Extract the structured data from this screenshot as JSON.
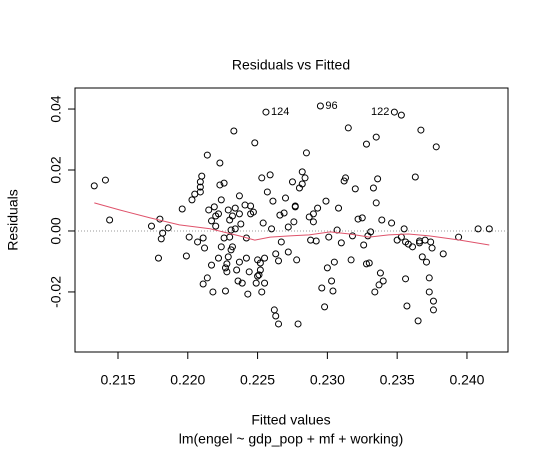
{
  "chart_data": {
    "type": "scatter",
    "title": "Residuals vs Fitted",
    "x_label": "Fitted values",
    "subtitle": "lm(engel ~ gdp_pop + mf + working)",
    "y_label": "Residuals",
    "xlim": [
      0.21192,
      0.24294
    ],
    "ylim": [
      -0.0397,
      0.0469
    ],
    "xticks": [
      0.215,
      {
        "value": 0.22,
        "label": "0.220"
      },
      0.225,
      {
        "value": 0.23,
        "label": "0.230"
      },
      0.235,
      {
        "value": 0.24,
        "label": "0.240"
      }
    ],
    "yticks": [
      -0.02,
      {
        "value": 0,
        "label": "0.00"
      },
      0.02,
      0.04
    ],
    "reference_line": 0,
    "point_color": "#000000",
    "points": {
      "x": [
        0.2133,
        0.2141,
        0.2144,
        0.2174,
        0.2179,
        0.218,
        0.2181,
        0.2182,
        0.2186,
        0.2196,
        0.2199,
        0.2201,
        0.2203,
        0.2205,
        0.2207,
        0.2209,
        0.2209,
        0.2209,
        0.221,
        0.2211,
        0.2211,
        0.2212,
        0.2214,
        0.2214,
        0.2215,
        0.2217,
        0.2217,
        0.2218,
        0.2219,
        0.222,
        0.222,
        0.2222,
        0.2222,
        0.2223,
        0.2223,
        0.2224,
        0.2224,
        0.2226,
        0.2226,
        0.2227,
        0.2227,
        0.2228,
        0.2228,
        0.2229,
        0.2229,
        0.223,
        0.223,
        0.2231,
        0.2231,
        0.2232,
        0.2232,
        0.2233,
        0.2234,
        0.2234,
        0.2235,
        0.2236,
        0.2237,
        0.2237,
        0.2237,
        0.2238,
        0.2239,
        0.2241,
        0.2242,
        0.2242,
        0.2243,
        0.2244,
        0.2245,
        0.2245,
        0.2247,
        0.2248,
        0.2249,
        0.225,
        0.225,
        0.2251,
        0.2252,
        0.2252,
        0.2253,
        0.2253,
        0.2254,
        0.2255,
        0.2255,
        0.2256,
        0.2257,
        0.2259,
        0.226,
        0.2261,
        0.2262,
        0.2263,
        0.2263,
        0.2265,
        0.2265,
        0.2266,
        0.2267,
        0.2269,
        0.227,
        0.2272,
        0.2272,
        0.2275,
        0.2276,
        0.2277,
        0.2277,
        0.2278,
        0.2279,
        0.228,
        0.2282,
        0.2282,
        0.2284,
        0.2285,
        0.2287,
        0.2288,
        0.229,
        0.229,
        0.2292,
        0.2293,
        0.2295,
        0.2296,
        0.2298,
        0.2299,
        0.23,
        0.2301,
        0.2303,
        0.2304,
        0.2305,
        0.2307,
        0.2308,
        0.231,
        0.2312,
        0.2313,
        0.2315,
        0.2317,
        0.2318,
        0.232,
        0.2322,
        0.2325,
        0.2326,
        0.2328,
        0.2328,
        0.2329,
        0.233,
        0.2331,
        0.2333,
        0.2334,
        0.2335,
        0.2335,
        0.2336,
        0.2337,
        0.2338,
        0.2339,
        0.234,
        0.2346,
        0.2348,
        0.235,
        0.2353,
        0.2353,
        0.2355,
        0.2356,
        0.2356,
        0.2357,
        0.2358,
        0.2361,
        0.2363,
        0.2365,
        0.2366,
        0.2366,
        0.2367,
        0.2368,
        0.237,
        0.2371,
        0.2373,
        0.2373,
        0.2374,
        0.2375,
        0.2376,
        0.2376,
        0.2378,
        0.2383,
        0.2394,
        0.2408,
        0.2416
      ],
      "y": [
        0.0148,
        0.0167,
        0.0036,
        0.0016,
        -0.0089,
        0.0039,
        -0.0026,
        -0.0007,
        0.001,
        0.0072,
        -0.0082,
        -0.002,
        0.0102,
        0.0121,
        -0.0036,
        0.0161,
        0.0144,
        0.0128,
        0.018,
        -0.0023,
        -0.0174,
        -0.0056,
        -0.0154,
        0.0249,
        0.0069,
        0.0033,
        -0.0112,
        -0.02,
        0.0079,
        0.0049,
        0.0016,
        0.0056,
        -0.0089,
        0.0223,
        0.0151,
        0.0102,
        -0.0052,
        -0.0023,
        0.0157,
        -0.0121,
        -0.0197,
        -0.0134,
        -0.0108,
        -0.0085,
        0.0069,
        0.0036,
        -0.002,
        0.0003,
        -0.0062,
        0.0049,
        -0.0052,
        0.0328,
        0.0075,
        0.0007,
        -0.0128,
        -0.0164,
        0.0115,
        0.0056,
        -0.0102,
        0.0023,
        -0.0171,
        0.0085,
        -0.0089,
        -0.0023,
        -0.0207,
        -0.0134,
        0.0056,
        0.0082,
        0.0062,
        0.0289,
        -0.0171,
        -0.0095,
        -0.0148,
        -0.0144,
        -0.0128,
        -0.0105,
        -0.02,
        0.0174,
        0.0026,
        -0.0089,
        -0.0171,
        0.039,
        0.0128,
        0.0184,
        0.0007,
        0.0098,
        -0.0259,
        -0.0279,
        -0.0075,
        -0.0098,
        -0.0305,
        0.0052,
        -0.0036,
        0.0059,
        0.0108,
        -0.0069,
        0.0013,
        0.0161,
        0.003,
        0.0079,
        0.0082,
        -0.0095,
        -0.0305,
        0.0141,
        0.0154,
        0.0194,
        0.0174,
        0.0256,
        0.0046,
        -0.003,
        0.0056,
        0.003,
        -0.0033,
        0.0075,
        0.041,
        -0.0187,
        -0.0249,
        0.0098,
        -0.0121,
        -0.002,
        -0.0164,
        -0.0197,
        -0.0102,
        0.0003,
        0.0075,
        -0.0039,
        0.0164,
        0.0174,
        0.0338,
        -0.0095,
        -0.0016,
        0.0138,
        0.0039,
        0.0043,
        -0.0046,
        -0.0108,
        0.0285,
        -0.0016,
        -0.0105,
        -0.0003,
        0.0141,
        -0.02,
        0.0308,
        0.0092,
        0.0171,
        -0.0177,
        -0.0138,
        0.0036,
        -0.0164,
        0.0026,
        0.039,
        -0.003,
        0.038,
        -0.002,
        0.0007,
        -0.0036,
        -0.0157,
        -0.0246,
        -0.0043,
        -0.0052,
        0.0177,
        -0.0295,
        -0.0039,
        -0.0033,
        0.0331,
        -0.0085,
        -0.003,
        -0.0102,
        -0.0154,
        -0.02,
        -0.0036,
        -0.0056,
        -0.023,
        -0.0259,
        0.0276,
        -0.0075,
        -0.002,
        0.0007,
        0.0007
      ]
    },
    "point_labels": [
      {
        "text": "124",
        "x": 0.2256,
        "y": 0.039,
        "side": "right"
      },
      {
        "text": "96",
        "x": 0.2295,
        "y": 0.041,
        "side": "right"
      },
      {
        "text": "122",
        "x": 0.2348,
        "y": 0.039,
        "side": "left"
      }
    ],
    "smooth": {
      "color": "#DF536B",
      "x": [
        0.2133,
        0.2151,
        0.2173,
        0.2194,
        0.2216,
        0.2237,
        0.2248,
        0.2259,
        0.2273,
        0.2287,
        0.2302,
        0.2316,
        0.233,
        0.2344,
        0.2358,
        0.2373,
        0.2395,
        0.2416
      ],
      "y": [
        0.0092,
        0.0069,
        0.0043,
        0.002,
        0.0007,
        -0.0016,
        -0.003,
        -0.002,
        -0.0016,
        -0.0013,
        -0.0003,
        -0.001,
        -0.002,
        -0.0013,
        -0.001,
        -0.0016,
        -0.003,
        -0.0046
      ]
    }
  }
}
